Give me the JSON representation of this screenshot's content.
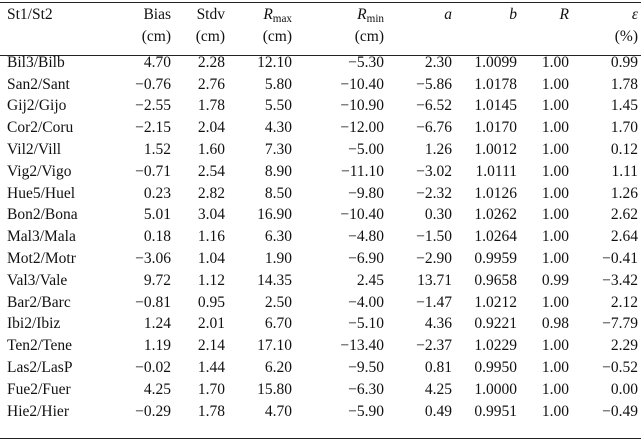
{
  "table": {
    "headers": [
      {
        "name": "St1/St2",
        "units": ""
      },
      {
        "name": "Bias",
        "units": "(cm)"
      },
      {
        "name": "Stdv",
        "units": "(cm)"
      },
      {
        "name": "R",
        "sub": "max",
        "units": "(cm)"
      },
      {
        "name": "R",
        "sub": "min",
        "units": "(cm)"
      },
      {
        "name": "a",
        "units": ""
      },
      {
        "name": "b",
        "units": ""
      },
      {
        "name": "R",
        "units": ""
      },
      {
        "name": "ε",
        "units": "(%)"
      }
    ],
    "rows": [
      [
        "Bil3/Bilb",
        "4.70",
        "2.28",
        "12.10",
        "−5.30",
        "2.30",
        "1.0099",
        "1.00",
        "0.99"
      ],
      [
        "San2/Sant",
        "−0.76",
        "2.76",
        "5.80",
        "−10.40",
        "−5.86",
        "1.0178",
        "1.00",
        "1.78"
      ],
      [
        "Gij2/Gijo",
        "−2.55",
        "1.78",
        "5.50",
        "−10.90",
        "−6.52",
        "1.0145",
        "1.00",
        "1.45"
      ],
      [
        "Cor2/Coru",
        "−2.15",
        "2.04",
        "4.30",
        "−12.00",
        "−6.76",
        "1.0170",
        "1.00",
        "1.70"
      ],
      [
        "Vil2/Vill",
        "1.52",
        "1.60",
        "7.30",
        "−5.00",
        "1.26",
        "1.0012",
        "1.00",
        "0.12"
      ],
      [
        "Vig2/Vigo",
        "−0.71",
        "2.54",
        "8.90",
        "−11.10",
        "−3.02",
        "1.0111",
        "1.00",
        "1.11"
      ],
      [
        "Hue5/Huel",
        "0.23",
        "2.82",
        "8.50",
        "−9.80",
        "−2.32",
        "1.0126",
        "1.00",
        "1.26"
      ],
      [
        "Bon2/Bona",
        "5.01",
        "3.04",
        "16.90",
        "−10.40",
        "0.30",
        "1.0262",
        "1.00",
        "2.62"
      ],
      [
        "Mal3/Mala",
        "0.18",
        "1.16",
        "6.30",
        "−4.80",
        "−1.50",
        "1.0264",
        "1.00",
        "2.64"
      ],
      [
        "Mot2/Motr",
        "−3.06",
        "1.04",
        "1.90",
        "−6.90",
        "−2.90",
        "0.9959",
        "1.00",
        "−0.41"
      ],
      [
        "Val3/Vale",
        "9.72",
        "1.12",
        "14.35",
        "2.45",
        "13.71",
        "0.9658",
        "0.99",
        "−3.42"
      ],
      [
        "Bar2/Barc",
        "−0.81",
        "0.95",
        "2.50",
        "−4.00",
        "−1.47",
        "1.0212",
        "1.00",
        "2.12"
      ],
      [
        "Ibi2/Ibiz",
        "1.24",
        "2.01",
        "6.70",
        "−5.10",
        "4.36",
        "0.9221",
        "0.98",
        "−7.79"
      ],
      [
        "Ten2/Tene",
        "1.19",
        "2.14",
        "17.10",
        "−13.40",
        "−2.37",
        "1.0229",
        "1.00",
        "2.29"
      ],
      [
        "Las2/LasP",
        "−0.02",
        "1.44",
        "6.20",
        "−9.50",
        "0.81",
        "0.9950",
        "1.00",
        "−0.52"
      ],
      [
        "Fue2/Fuer",
        "4.25",
        "1.70",
        "15.80",
        "−6.30",
        "4.25",
        "1.0000",
        "1.00",
        "0.00"
      ],
      [
        "Hie2/Hier",
        "−0.29",
        "1.78",
        "4.70",
        "−5.90",
        "0.49",
        "0.9951",
        "1.00",
        "−0.49"
      ]
    ]
  }
}
